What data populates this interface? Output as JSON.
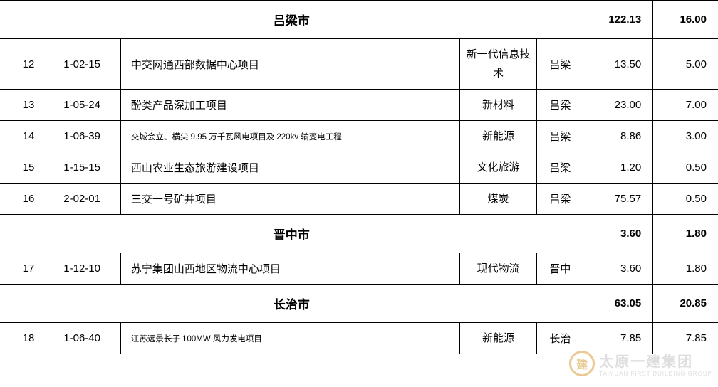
{
  "colors": {
    "border": "#000000",
    "text": "#000000",
    "background": "#ffffff",
    "watermark_accent": "#d9a74a",
    "watermark_text": "#c9c9c9"
  },
  "sections": [
    {
      "header": {
        "name": "吕梁市",
        "val1": "122.13",
        "val2": "16.00"
      },
      "rows": [
        {
          "num": "12",
          "code": "1-02-15",
          "name": "中交网通西部数据中心项目",
          "cat": "新一代信息技术",
          "city": "吕梁",
          "val1": "13.50",
          "val2": "5.00",
          "small": false
        },
        {
          "num": "13",
          "code": "1-05-24",
          "name": "酚类产品深加工项目",
          "cat": "新材料",
          "city": "吕梁",
          "val1": "23.00",
          "val2": "7.00",
          "small": false
        },
        {
          "num": "14",
          "code": "1-06-39",
          "name": "交城会立、横尖 9.95 万千瓦风电项目及 220kv 输变电工程",
          "cat": "新能源",
          "city": "吕梁",
          "val1": "8.86",
          "val2": "3.00",
          "small": true
        },
        {
          "num": "15",
          "code": "1-15-15",
          "name": "西山农业生态旅游建设项目",
          "cat": "文化旅游",
          "city": "吕梁",
          "val1": "1.20",
          "val2": "0.50",
          "small": false,
          "cat_break": true
        },
        {
          "num": "16",
          "code": "2-02-01",
          "name": "三交一号矿井项目",
          "cat": "煤炭",
          "city": "吕梁",
          "val1": "75.57",
          "val2": "0.50",
          "small": false
        }
      ]
    },
    {
      "header": {
        "name": "晋中市",
        "val1": "3.60",
        "val2": "1.80"
      },
      "rows": [
        {
          "num": "17",
          "code": "1-12-10",
          "name": "苏宁集团山西地区物流中心项目",
          "cat": "现代物流",
          "city": "晋中",
          "val1": "3.60",
          "val2": "1.80",
          "small": false,
          "cat_break": true
        }
      ]
    },
    {
      "header": {
        "name": "长治市",
        "val1": "63.05",
        "val2": "20.85"
      },
      "rows": [
        {
          "num": "18",
          "code": "1-06-40",
          "name": "江苏远景长子 100MW 风力发电项目",
          "cat": "新能源",
          "city": "长治",
          "val1": "7.85",
          "val2": "7.85",
          "small": true
        }
      ]
    }
  ],
  "watermark": {
    "logo_char": "建",
    "text": "太原一建集团",
    "sub": "TAIYUAN FIRST BUILDING GROUP"
  }
}
